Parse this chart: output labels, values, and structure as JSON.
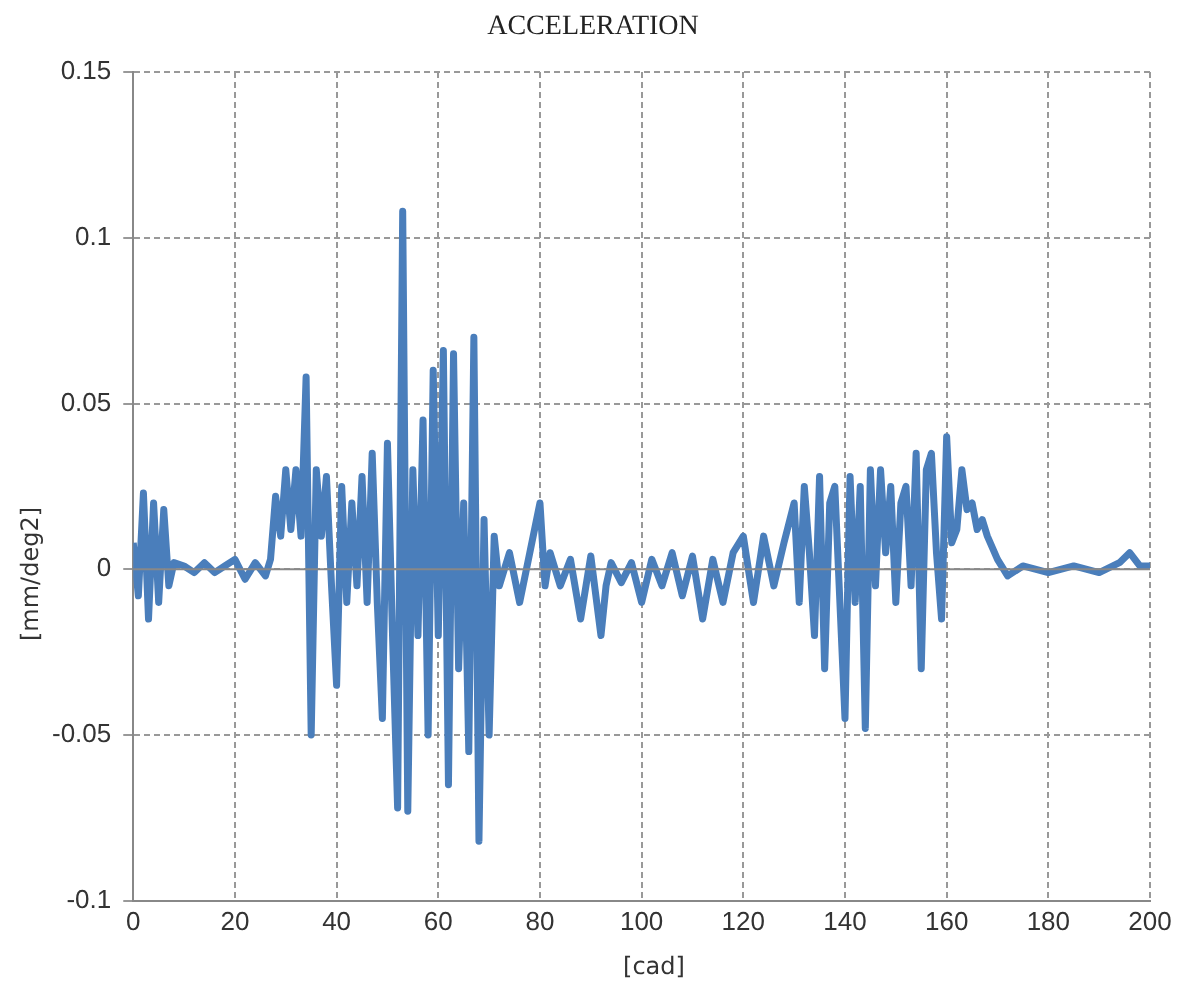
{
  "chart_data": {
    "type": "line",
    "title": "ACCELERATION",
    "xlabel": "[cad]",
    "ylabel": "[mm/deg2]",
    "xlim": [
      0,
      200
    ],
    "xticks": [
      0,
      20,
      40,
      60,
      80,
      100,
      120,
      140,
      160,
      180,
      200
    ],
    "ylim": [
      -0.1,
      0.15
    ],
    "yticks": [
      -0.1,
      -0.05,
      0,
      0.05,
      0.1,
      0.15
    ],
    "grid": true,
    "legend": false,
    "marker": "none",
    "line_style": "solid",
    "series": [
      {
        "color": "#4a7ebb",
        "x": [
          0,
          1,
          2,
          3,
          4,
          5,
          6,
          7,
          8,
          10,
          12,
          14,
          16,
          18,
          20,
          22,
          24,
          26,
          27,
          28,
          29,
          30,
          31,
          32,
          33,
          34,
          35,
          36,
          37,
          38,
          39,
          40,
          41,
          42,
          43,
          44,
          45,
          46,
          47,
          48,
          49,
          50,
          51,
          52,
          53,
          54,
          55,
          56,
          57,
          58,
          59,
          60,
          61,
          62,
          63,
          64,
          65,
          66,
          67,
          68,
          69,
          70,
          71,
          72,
          74,
          76,
          78,
          80,
          81,
          82,
          84,
          86,
          88,
          90,
          92,
          93,
          94,
          96,
          98,
          100,
          102,
          104,
          106,
          108,
          110,
          112,
          114,
          116,
          118,
          120,
          122,
          124,
          126,
          128,
          130,
          131,
          132,
          133,
          134,
          135,
          136,
          137,
          138,
          139,
          140,
          141,
          142,
          143,
          144,
          145,
          146,
          147,
          148,
          149,
          150,
          151,
          152,
          153,
          154,
          155,
          156,
          157,
          158,
          159,
          160,
          161,
          162,
          163,
          164,
          165,
          166,
          167,
          168,
          170,
          172,
          175,
          180,
          185,
          190,
          194,
          196,
          198,
          200
        ],
        "values": [
          0.008,
          -0.008,
          0.023,
          -0.015,
          0.02,
          -0.01,
          0.018,
          -0.005,
          0.002,
          0.001,
          -0.001,
          0.002,
          -0.001,
          0.001,
          0.003,
          -0.003,
          0.002,
          -0.002,
          0.003,
          0.022,
          0.01,
          0.03,
          0.012,
          0.03,
          0.01,
          0.058,
          -0.05,
          0.03,
          0.01,
          0.028,
          -0.005,
          -0.035,
          0.025,
          -0.01,
          0.02,
          -0.005,
          0.028,
          -0.01,
          0.035,
          -0.01,
          -0.045,
          0.038,
          -0.02,
          -0.072,
          0.108,
          -0.073,
          0.03,
          -0.02,
          0.045,
          -0.05,
          0.06,
          -0.02,
          0.066,
          -0.065,
          0.065,
          -0.03,
          0.02,
          -0.055,
          0.07,
          -0.082,
          0.015,
          -0.05,
          0.01,
          -0.005,
          0.005,
          -0.01,
          0.005,
          0.02,
          -0.005,
          0.005,
          -0.005,
          0.003,
          -0.015,
          0.004,
          -0.02,
          -0.005,
          0.002,
          -0.004,
          0.002,
          -0.01,
          0.003,
          -0.005,
          0.005,
          -0.008,
          0.004,
          -0.015,
          0.003,
          -0.01,
          0.005,
          0.01,
          -0.01,
          0.01,
          -0.005,
          0.008,
          0.02,
          -0.01,
          0.025,
          0.005,
          -0.02,
          0.028,
          -0.03,
          0.02,
          0.025,
          -0.01,
          -0.045,
          0.028,
          -0.01,
          0.025,
          -0.048,
          0.03,
          -0.005,
          0.03,
          0.005,
          0.025,
          -0.01,
          0.02,
          0.025,
          -0.005,
          0.035,
          -0.03,
          0.03,
          0.035,
          0.005,
          -0.015,
          0.04,
          0.008,
          0.012,
          0.03,
          0.018,
          0.02,
          0.012,
          0.015,
          0.01,
          0.003,
          -0.002,
          0.001,
          -0.001,
          0.001,
          -0.001,
          0.002,
          0.005,
          0.001,
          0.001
        ]
      }
    ]
  }
}
